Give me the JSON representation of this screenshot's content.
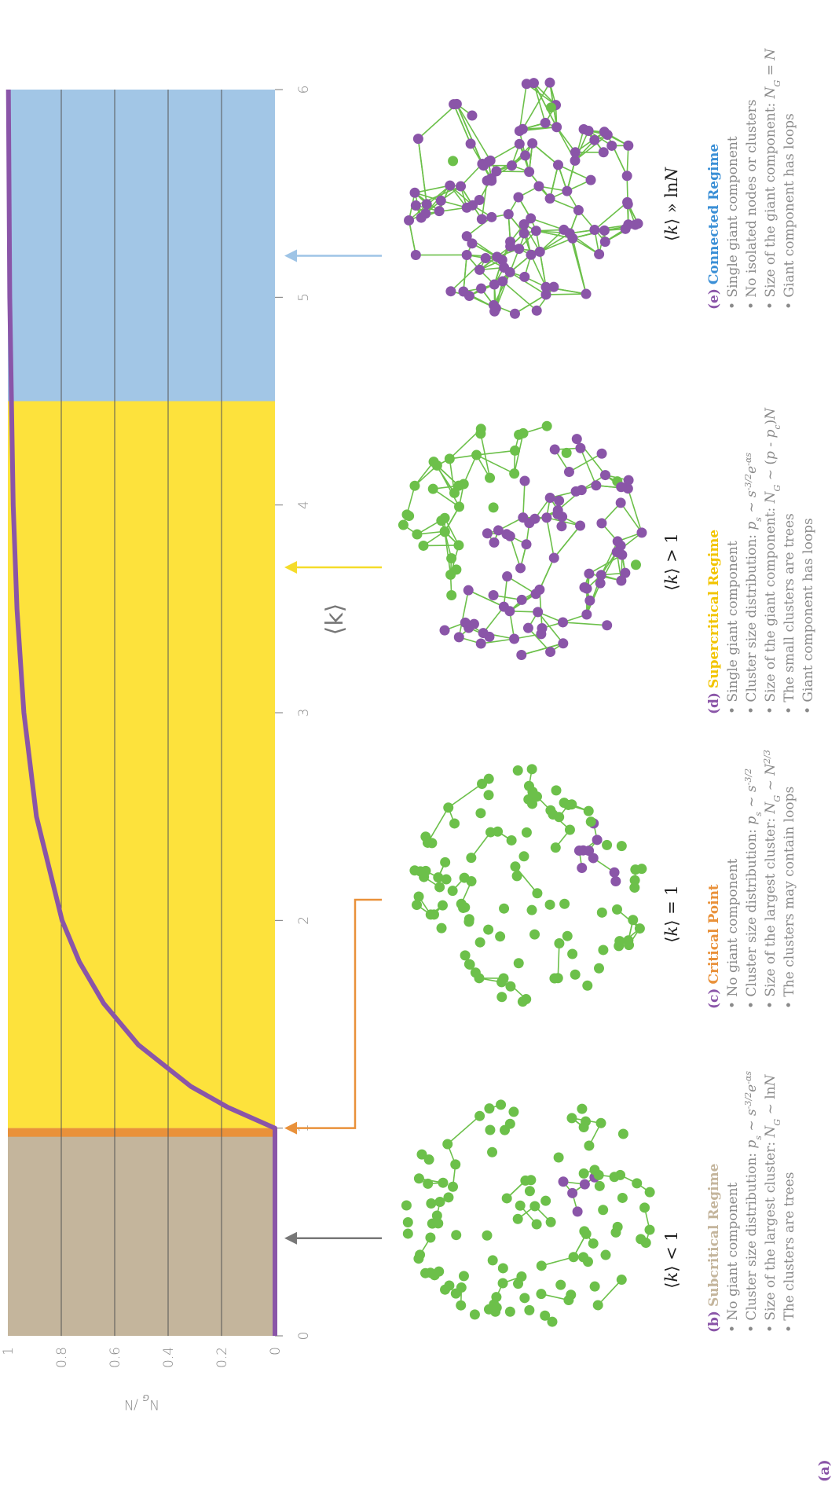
{
  "panel_label": "(a)",
  "chart_data": {
    "type": "line",
    "ylabel": [
      "N",
      [
        "G",
        "sub"
      ],
      " /N"
    ],
    "xlabel": "⟨k⟩",
    "x": [
      0,
      0.5,
      1,
      1.1,
      1.2,
      1.4,
      1.6,
      1.8,
      2,
      2.5,
      3,
      3.5,
      4,
      5,
      6
    ],
    "series": [
      {
        "color": "#8a55a8",
        "values": [
          0,
          0,
          0,
          0.176,
          0.314,
          0.511,
          0.641,
          0.732,
          0.797,
          0.893,
          0.94,
          0.966,
          0.98,
          0.993,
          0.998
        ]
      }
    ],
    "xlim": [
      0,
      6
    ],
    "xticks": [
      0,
      1,
      2,
      3,
      4,
      5,
      6
    ],
    "ylim": [
      0,
      1
    ],
    "yticks": [
      0,
      0.2,
      0.4,
      0.6,
      0.8,
      1
    ],
    "grid": true,
    "regions": [
      {
        "range": [
          0,
          1
        ],
        "color": "#c4b59c"
      },
      {
        "range": [
          1,
          4.5
        ],
        "color": "#fde23c"
      },
      {
        "range": [
          4.5,
          6
        ],
        "color": "#a2c6e6"
      }
    ],
    "critical": {
      "value": 1,
      "color": "#e9913a"
    }
  },
  "panels": [
    {
      "k_label": [
        "⟨",
        [
          "k",
          "i"
        ],
        "⟩ < 1"
      ],
      "letter": "(b)",
      "title": "Subcritical Regime",
      "color": "#c4b59c",
      "bullets": [
        [
          "• No giant component"
        ],
        [
          "• Cluster size distribution: ",
          [
            "p",
            "i"
          ],
          [
            "s",
            "sub"
          ],
          " ~ ",
          [
            "s",
            "i"
          ],
          [
            "-3/2",
            "sup"
          ],
          [
            "e",
            "i"
          ],
          [
            "-αs",
            "sup"
          ]
        ],
        [
          "• Size of the largest cluster: ",
          [
            "N",
            "i"
          ],
          [
            "G",
            "sub"
          ],
          " ~ ln",
          [
            "N",
            "i"
          ]
        ],
        [
          "• The clusters are trees"
        ]
      ]
    },
    {
      "k_label": [
        "⟨",
        [
          "k",
          "i"
        ],
        "⟩ = 1"
      ],
      "letter": "(c)",
      "title": "Critical Point",
      "color": "#e9913a",
      "bullets": [
        [
          "• No giant component"
        ],
        [
          "• Cluster size distribution: ",
          [
            "p",
            "i"
          ],
          [
            "s",
            "sub"
          ],
          " ~ ",
          [
            "s",
            "i"
          ],
          [
            "-3/2",
            "sup"
          ]
        ],
        [
          "• Size of the largest cluster: ",
          [
            "N",
            "i"
          ],
          [
            "G",
            "sub"
          ],
          " ~ ",
          [
            "N",
            "i"
          ],
          [
            "2/3",
            "sup"
          ]
        ],
        [
          "• The clusters may contain loops"
        ]
      ]
    },
    {
      "k_label": [
        "⟨",
        [
          "k",
          "i"
        ],
        "⟩ > 1"
      ],
      "letter": "(d)",
      "title": "Supercritical Regime",
      "color": "#f2c400",
      "bullets": [
        [
          "• Single giant component"
        ],
        [
          "• Cluster size distribution: ",
          [
            "p",
            "i"
          ],
          [
            "s",
            "sub"
          ],
          " ~ ",
          [
            "s",
            "i"
          ],
          [
            "-3/2",
            "sup"
          ],
          [
            "e",
            "i"
          ],
          [
            "-αs",
            "sup"
          ]
        ],
        [
          "• Size of the giant component: ",
          [
            "N",
            "i"
          ],
          [
            "G",
            "sub"
          ],
          " ~ (",
          [
            "p",
            "i"
          ],
          " - ",
          [
            "p",
            "i"
          ],
          [
            "c",
            "sub"
          ],
          ")",
          [
            "N",
            "i"
          ]
        ],
        [
          "• The small clusters are trees"
        ],
        [
          "• Giant component has loops"
        ]
      ]
    },
    {
      "k_label": [
        "⟨",
        [
          "k",
          "i"
        ],
        "⟩ » ln",
        [
          "N",
          "i"
        ]
      ],
      "letter": "(e)",
      "title": "Connected Regime",
      "color": "#3a8fd6",
      "bullets": [
        [
          "• Single giant component"
        ],
        [
          "• No isolated nodes or clusters"
        ],
        [
          "• Size of the giant component: ",
          [
            "N",
            "i"
          ],
          [
            "G",
            "sub"
          ],
          " = ",
          [
            "N",
            "i"
          ]
        ],
        [
          "• Giant component has loops"
        ]
      ]
    }
  ]
}
